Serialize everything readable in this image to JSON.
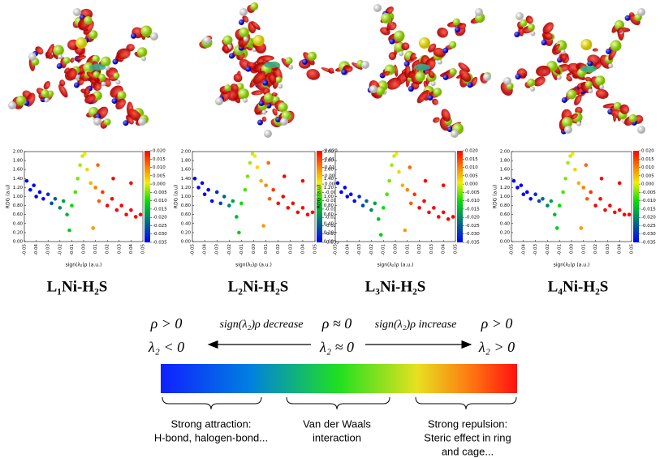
{
  "chart_data": [
    {
      "type": "scatter",
      "title": "L₁Ni-H₂S",
      "xlabel": "sign(λ₂)ρ (a.u.)",
      "ylabel": "RDG (a.u)",
      "xlim": [
        -0.05,
        0.05
      ],
      "ylim": [
        0,
        2
      ],
      "xticks": [
        -0.05,
        -0.04,
        -0.03,
        -0.02,
        -0.01,
        {
          "value": 0,
          "label": "0.00"
        },
        0.01,
        0.02,
        0.03,
        0.04,
        0.05
      ],
      "yticks": [
        {
          "value": 0,
          "label": "0.00"
        },
        {
          "value": 0.2,
          "label": "0.20"
        },
        {
          "value": 0.4,
          "label": "0.40"
        },
        {
          "value": 0.6,
          "label": "0.60"
        },
        {
          "value": 0.8,
          "label": "0.80"
        },
        {
          "value": 1,
          "label": "1.00"
        },
        {
          "value": 1.2,
          "label": "1.20"
        },
        {
          "value": 1.4,
          "label": "1.40"
        },
        {
          "value": 1.6,
          "label": "1.60"
        },
        {
          "value": 1.8,
          "label": "1.80"
        },
        {
          "value": 2,
          "label": "2.00"
        }
      ],
      "clim": [
        -0.035,
        0.02
      ],
      "colorbar_ticks": [
        {
          "value": 0.02,
          "label": "0.020"
        },
        0.015,
        {
          "value": 0.01,
          "label": "0.010"
        },
        0.005,
        {
          "value": 0,
          "label": "0.000"
        },
        -0.005,
        {
          "value": -0.01,
          "label": "-0.010"
        },
        -0.015,
        {
          "value": -0.02,
          "label": "-0.020"
        },
        -0.025,
        {
          "value": -0.03,
          "label": "-0.030"
        },
        -0.035
      ],
      "x": [
        -0.048,
        -0.045,
        -0.042,
        -0.04,
        -0.037,
        -0.034,
        -0.03,
        -0.027,
        -0.024,
        -0.02,
        -0.017,
        -0.014,
        -0.012,
        -0.01,
        -0.007,
        -0.005,
        -0.003,
        -0.001,
        0.001,
        0.003,
        0.006,
        0.008,
        0.01,
        0.012,
        0.013,
        0.016,
        0.02,
        0.024,
        0.025,
        0.028,
        0.032,
        0.036,
        0.04,
        0.04,
        0.044,
        0.048
      ],
      "y": [
        1.35,
        1.15,
        1.25,
        1.0,
        1.1,
        0.95,
        1.05,
        0.85,
        0.95,
        0.75,
        0.9,
        0.6,
        0.25,
        0.8,
        1.1,
        1.4,
        1.7,
        1.9,
        1.95,
        1.6,
        1.3,
        0.3,
        1.2,
        1.7,
        0.9,
        1.1,
        0.8,
        0.95,
        1.4,
        0.7,
        0.8,
        0.6,
        0.7,
        1.3,
        0.55,
        0.6
      ]
    },
    {
      "type": "scatter",
      "title": "L₂Ni-H₂S",
      "xlabel": "sign(λ₂)ρ (a.u.)",
      "ylabel": "RDG (a.u)",
      "xlim": [
        -0.05,
        0.05
      ],
      "ylim": [
        0,
        2
      ],
      "xticks": [
        -0.05,
        -0.04,
        -0.03,
        -0.02,
        -0.01,
        {
          "value": 0,
          "label": "0.00"
        },
        0.01,
        0.02,
        0.03,
        0.04,
        0.05
      ],
      "yticks": [
        {
          "value": 0,
          "label": "0.00"
        },
        {
          "value": 0.2,
          "label": "0.20"
        },
        {
          "value": 0.4,
          "label": "0.40"
        },
        {
          "value": 0.6,
          "label": "0.60"
        },
        {
          "value": 0.8,
          "label": "0.80"
        },
        {
          "value": 1,
          "label": "1.00"
        },
        {
          "value": 1.2,
          "label": "1.20"
        },
        {
          "value": 1.4,
          "label": "1.40"
        },
        {
          "value": 1.6,
          "label": "1.60"
        },
        {
          "value": 1.8,
          "label": "1.80"
        },
        {
          "value": 2,
          "label": "2.00"
        }
      ],
      "clim": [
        -0.035,
        0.02
      ],
      "colorbar_ticks": [
        {
          "value": 0.02,
          "label": "0.020"
        },
        0.015,
        {
          "value": 0.01,
          "label": "0.010"
        },
        0.005,
        {
          "value": 0,
          "label": "0.000"
        },
        -0.005,
        {
          "value": -0.01,
          "label": "-0.010"
        },
        -0.015,
        {
          "value": -0.02,
          "label": "-0.020"
        },
        -0.025,
        {
          "value": -0.03,
          "label": "-0.030"
        },
        -0.035
      ],
      "x": [
        -0.048,
        -0.045,
        -0.042,
        -0.04,
        -0.037,
        -0.034,
        -0.03,
        -0.027,
        -0.024,
        -0.02,
        -0.017,
        -0.014,
        -0.012,
        -0.01,
        -0.007,
        -0.005,
        -0.003,
        -0.001,
        0.001,
        0.003,
        0.006,
        0.008,
        0.01,
        0.012,
        0.013,
        0.016,
        0.02,
        0.024,
        0.025,
        0.028,
        0.032,
        0.036,
        0.04,
        0.04,
        0.044,
        0.048
      ],
      "y": [
        1.4,
        1.2,
        1.3,
        1.05,
        1.15,
        0.9,
        1.1,
        0.85,
        1.0,
        0.8,
        0.9,
        0.55,
        0.2,
        0.85,
        1.15,
        1.45,
        1.75,
        1.95,
        1.9,
        1.65,
        1.35,
        0.35,
        1.25,
        1.75,
        0.95,
        1.15,
        0.85,
        1.0,
        1.45,
        0.75,
        0.85,
        0.65,
        0.75,
        1.35,
        0.6,
        0.65
      ]
    },
    {
      "type": "scatter",
      "title": "L₃Ni-H₂S",
      "xlabel": "sign(λ₂)ρ (a.u.)",
      "ylabel": "RDG (a.u)",
      "xlim": [
        -0.05,
        0.05
      ],
      "ylim": [
        0,
        2
      ],
      "xticks": [
        -0.05,
        -0.04,
        -0.03,
        -0.02,
        -0.01,
        {
          "value": 0,
          "label": "0.00"
        },
        0.01,
        0.02,
        0.03,
        0.04,
        0.05
      ],
      "yticks": [
        {
          "value": 0,
          "label": "0.00"
        },
        {
          "value": 0.2,
          "label": "0.20"
        },
        {
          "value": 0.4,
          "label": "0.40"
        },
        {
          "value": 0.6,
          "label": "0.60"
        },
        {
          "value": 0.8,
          "label": "0.80"
        },
        {
          "value": 1,
          "label": "1.00"
        },
        {
          "value": 1.2,
          "label": "1.20"
        },
        {
          "value": 1.4,
          "label": "1.40"
        },
        {
          "value": 1.6,
          "label": "1.60"
        },
        {
          "value": 1.8,
          "label": "1.80"
        },
        {
          "value": 2,
          "label": "2.00"
        }
      ],
      "clim": [
        -0.035,
        0.02
      ],
      "colorbar_ticks": [
        {
          "value": 0.02,
          "label": "0.020"
        },
        0.015,
        {
          "value": 0.01,
          "label": "0.010"
        },
        0.005,
        {
          "value": 0,
          "label": "0.000"
        },
        -0.005,
        {
          "value": -0.01,
          "label": "-0.010"
        },
        -0.015,
        {
          "value": -0.02,
          "label": "-0.020"
        },
        -0.025,
        {
          "value": -0.03,
          "label": "-0.030"
        },
        -0.035
      ],
      "x": [
        -0.048,
        -0.045,
        -0.042,
        -0.04,
        -0.037,
        -0.034,
        -0.03,
        -0.027,
        -0.024,
        -0.02,
        -0.017,
        -0.014,
        -0.012,
        -0.01,
        -0.007,
        -0.005,
        -0.003,
        -0.001,
        0.001,
        0.003,
        0.006,
        0.008,
        0.01,
        0.012,
        0.013,
        0.016,
        0.02,
        0.024,
        0.025,
        0.028,
        0.032,
        0.036,
        0.04,
        0.04,
        0.044,
        0.048
      ],
      "y": [
        1.3,
        1.1,
        1.2,
        1.0,
        1.05,
        0.9,
        1.0,
        0.8,
        0.9,
        0.7,
        0.85,
        0.5,
        0.15,
        0.75,
        1.05,
        1.35,
        1.7,
        1.9,
        1.95,
        1.55,
        1.25,
        0.25,
        1.15,
        1.65,
        0.85,
        1.05,
        0.75,
        0.9,
        1.35,
        0.65,
        0.75,
        0.55,
        0.65,
        1.25,
        0.5,
        0.55
      ]
    },
    {
      "type": "scatter",
      "title": "L₄Ni-H₂S",
      "xlabel": "sign(λ₂)ρ (a.u.)",
      "ylabel": "RDG (a.u)",
      "xlim": [
        -0.05,
        0.05
      ],
      "ylim": [
        0,
        2
      ],
      "xticks": [
        -0.05,
        -0.04,
        -0.03,
        -0.02,
        -0.01,
        {
          "value": 0,
          "label": "0.00"
        },
        0.01,
        0.02,
        0.03,
        0.04,
        0.05
      ],
      "yticks": [
        {
          "value": 0,
          "label": "0.00"
        },
        {
          "value": 0.2,
          "label": "0.20"
        },
        {
          "value": 0.4,
          "label": "0.40"
        },
        {
          "value": 0.6,
          "label": "0.60"
        },
        {
          "value": 0.8,
          "label": "0.80"
        },
        {
          "value": 1,
          "label": "1.00"
        },
        {
          "value": 1.2,
          "label": "1.20"
        },
        {
          "value": 1.4,
          "label": "1.40"
        },
        {
          "value": 1.6,
          "label": "1.60"
        },
        {
          "value": 1.8,
          "label": "1.80"
        },
        {
          "value": 2,
          "label": "2.00"
        }
      ],
      "clim": [
        -0.035,
        0.02
      ],
      "colorbar_ticks": [
        {
          "value": 0.02,
          "label": "0.020"
        },
        0.015,
        {
          "value": 0.01,
          "label": "0.010"
        },
        0.005,
        {
          "value": 0,
          "label": "0.000"
        },
        -0.005,
        {
          "value": -0.01,
          "label": "-0.010"
        },
        -0.015,
        {
          "value": -0.02,
          "label": "-0.020"
        },
        -0.025,
        {
          "value": -0.03,
          "label": "-0.030"
        },
        -0.035
      ],
      "x": [
        -0.048,
        -0.045,
        -0.042,
        -0.04,
        -0.037,
        -0.034,
        -0.03,
        -0.027,
        -0.024,
        -0.02,
        -0.017,
        -0.014,
        -0.012,
        -0.01,
        -0.007,
        -0.005,
        -0.003,
        -0.001,
        0.001,
        0.003,
        0.006,
        0.008,
        0.01,
        0.012,
        0.013,
        0.016,
        0.02,
        0.024,
        0.025,
        0.028,
        0.032,
        0.036,
        0.04,
        0.04,
        0.044,
        0.048
      ],
      "y": [
        1.35,
        1.2,
        1.25,
        1.05,
        1.1,
        0.95,
        1.05,
        0.9,
        0.95,
        0.8,
        0.9,
        0.6,
        0.3,
        0.8,
        1.1,
        1.4,
        1.75,
        1.9,
        1.95,
        1.6,
        1.3,
        0.3,
        1.2,
        1.7,
        0.95,
        1.1,
        0.8,
        0.95,
        1.4,
        0.7,
        0.8,
        0.65,
        0.7,
        1.3,
        0.6,
        0.6
      ]
    }
  ],
  "scale_diagram": {
    "left_top": "ρ > 0",
    "left_bottom": "λ₂ < 0",
    "decrease": "sign(λ₂)ρ decrease",
    "center_top": "ρ ≈ 0",
    "center_bottom": "λ₂ ≈ 0",
    "increase": "sign(λ₂)ρ increase",
    "right_top": "ρ > 0",
    "right_bottom": "λ₂ > 0",
    "captions": [
      [
        "Strong attraction:",
        "H-bond, halogen-bond..."
      ],
      [
        "Van der Waals",
        "interaction"
      ],
      [
        "Strong repulsion:",
        "Steric effect in ring",
        "and cage..."
      ]
    ]
  }
}
